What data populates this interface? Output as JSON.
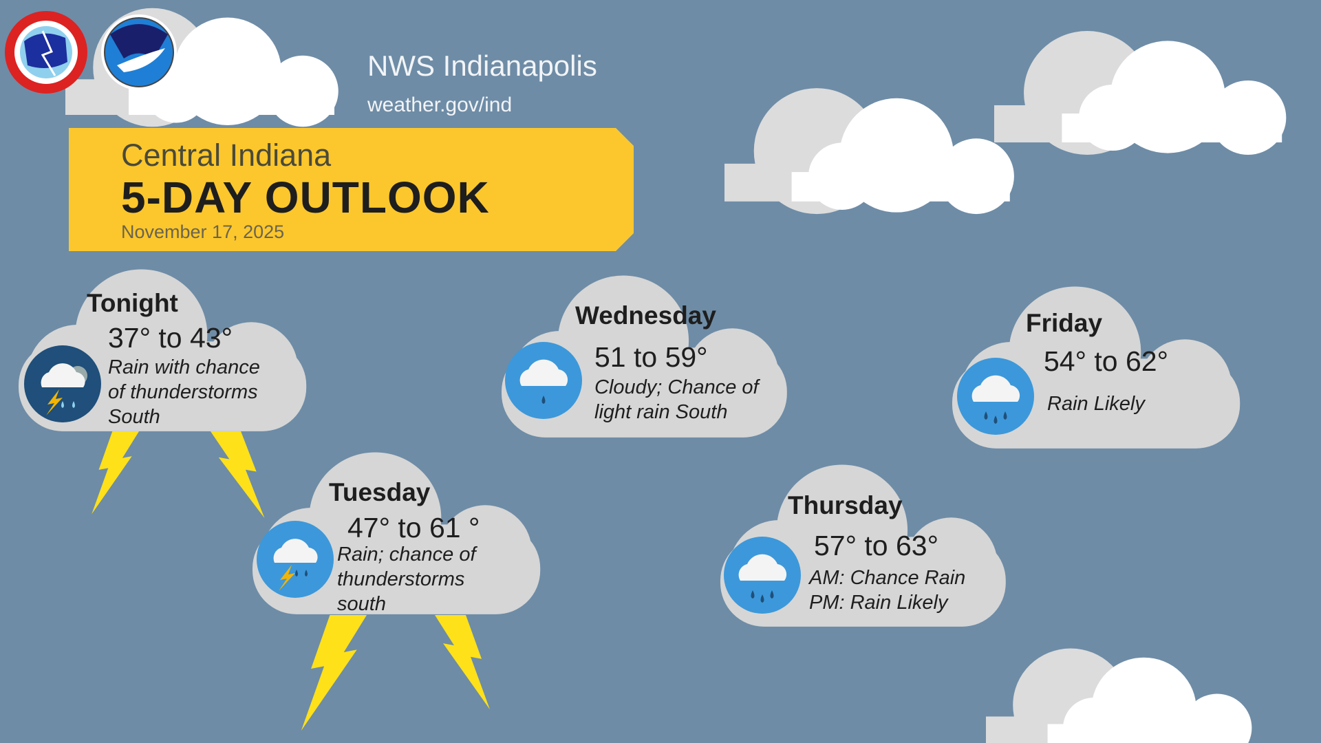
{
  "header": {
    "office": "NWS Indianapolis",
    "url": "weather.gov/ind",
    "logos": [
      "National Weather Service",
      "NOAA"
    ]
  },
  "banner": {
    "region": "Central Indiana",
    "title": "5-DAY OUTLOOK",
    "date": "November 17, 2025"
  },
  "colors": {
    "background": "#6e8ca6",
    "banner": "#fcc72c",
    "cloud": "#d6d6d6",
    "icon_blue": "#3c98da",
    "icon_dark": "#1f4f7a",
    "lightning": "#ffe11a"
  },
  "forecast": [
    {
      "day": "Tonight",
      "temp": "37° to 43°",
      "desc": [
        "Rain with chance",
        "of thunderstorms",
        "South"
      ],
      "icon": "rain-thunder-night-icon"
    },
    {
      "day": "Tuesday",
      "temp": "47° to 61 °",
      "desc": [
        "Rain; chance of",
        "thunderstorms",
        "south"
      ],
      "icon": "rain-thunder-icon"
    },
    {
      "day": "Wednesday",
      "temp": "51 to 59°",
      "desc": [
        "Cloudy; Chance of",
        "light rain South"
      ],
      "icon": "light-rain-icon"
    },
    {
      "day": "Thursday",
      "temp": "57° to 63°",
      "desc": [
        "AM: Chance Rain",
        "PM: Rain Likely"
      ],
      "icon": "rain-icon"
    },
    {
      "day": "Friday",
      "temp": "54° to 62°",
      "desc": [
        "Rain Likely"
      ],
      "icon": "rain-icon"
    }
  ]
}
